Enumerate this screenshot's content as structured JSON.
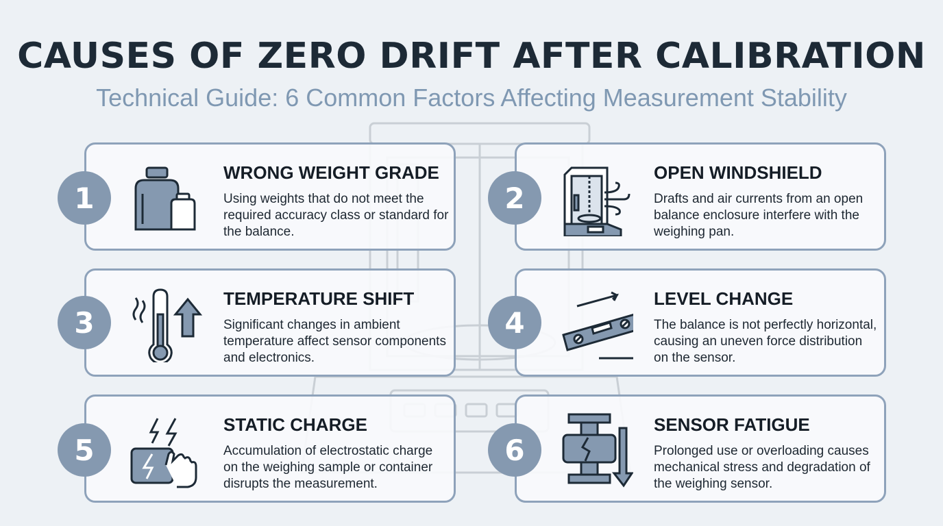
{
  "header": {
    "title": "CAUSES OF ZERO DRIFT AFTER CALIBRATION",
    "subtitle": "Technical Guide: 6 Common Factors Affecting Measurement Stability"
  },
  "colors": {
    "badge": "#8599b0",
    "card_border": "#8ea2ba",
    "icon_fill": "#8599b0",
    "icon_stroke": "#1d2a36",
    "title": "#1d2a36",
    "subtitle": "#7f98b2"
  },
  "causes": [
    {
      "number": "1",
      "icon": "weights-icon",
      "title": "WRONG WEIGHT GRADE",
      "description": "Using weights that do not meet the required accuracy class or standard for the balance."
    },
    {
      "number": "2",
      "icon": "windshield-draft-icon",
      "title": "OPEN WINDSHIELD",
      "description": "Drafts and air currents from an open balance enclosure interfere with the weighing pan."
    },
    {
      "number": "3",
      "icon": "thermometer-icon",
      "title": "TEMPERATURE SHIFT",
      "description": "Significant changes in ambient temperature affect sensor components and electronics."
    },
    {
      "number": "4",
      "icon": "spirit-level-icon",
      "title": "LEVEL CHANGE",
      "description": "The balance is not perfectly horizontal, causing an uneven force distribution on the sensor."
    },
    {
      "number": "5",
      "icon": "static-charge-icon",
      "title": "STATIC CHARGE",
      "description": "Accumulation of electrostatic charge on the weighing sample or container disrupts the measurement."
    },
    {
      "number": "6",
      "icon": "cracked-sensor-icon",
      "title": "SENSOR FATIGUE",
      "description": "Prolonged use or overloading causes mechanical stress and degradation of the weighing sensor."
    }
  ]
}
